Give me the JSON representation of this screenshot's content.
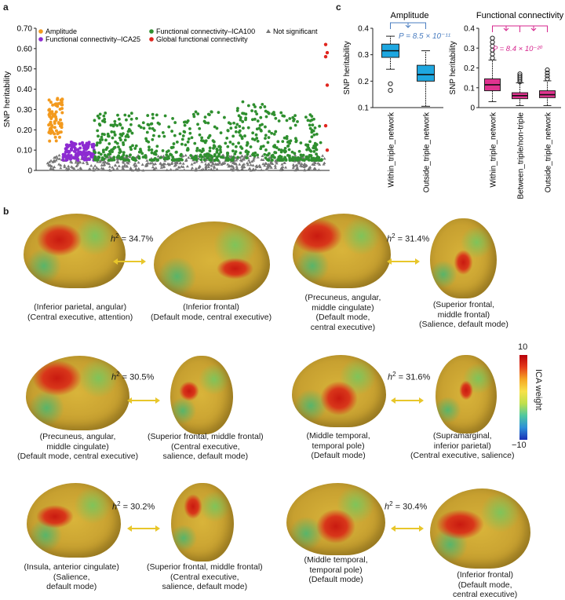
{
  "panels": {
    "a": "a",
    "b": "b",
    "c": "c"
  },
  "chart_data": [
    {
      "type": "scatter",
      "ylabel": "SNP heritability",
      "xlabel": "",
      "ylim": [
        0,
        0.7
      ],
      "yticks": [
        "0",
        "0.10",
        "0.20",
        "0.30",
        "0.40",
        "0.50",
        "0.60",
        "0.70"
      ],
      "grid": false,
      "legend": [
        {
          "label": "Amplitude",
          "color": "#f39a1e",
          "marker": "circle"
        },
        {
          "label": "Functional connectivity–ICA25",
          "color": "#8d2bd1",
          "marker": "circle"
        },
        {
          "label": "Functional connectivity–ICA100",
          "color": "#2f8f2f",
          "marker": "circle"
        },
        {
          "label": "Global functional connectivity",
          "color": "#e0261f",
          "marker": "circle"
        },
        {
          "label": "Not significant",
          "color": "#777777",
          "marker": "triangle"
        }
      ],
      "series_summary": [
        {
          "name": "Amplitude",
          "count": 76,
          "range": [
            0.13,
            0.37
          ]
        },
        {
          "name": "Functional connectivity–ICA25",
          "count": 140,
          "range": [
            0.05,
            0.14
          ]
        },
        {
          "name": "Functional connectivity–ICA100",
          "count": 1000,
          "range": [
            0.05,
            0.34
          ]
        },
        {
          "name": "Global functional connectivity",
          "values": [
            0.62,
            0.58,
            0.56,
            0.42,
            0.22,
            0.1
          ]
        },
        {
          "name": "Not significant",
          "count": 600,
          "range": [
            0.0,
            0.08
          ]
        }
      ]
    },
    {
      "type": "box",
      "title": "Amplitude",
      "ylabel": "SNP heritability",
      "ylim": [
        0.1,
        0.4
      ],
      "yticks": [
        "0.1",
        "0.2",
        "0.3",
        "0.4"
      ],
      "categories": [
        "Within_triple_network",
        "Outside_triple_network"
      ],
      "boxes": [
        {
          "q1": 0.29,
          "median": 0.315,
          "q3": 0.34,
          "whisker_low": 0.245,
          "whisker_high": 0.37,
          "outliers": [
            0.19,
            0.165
          ]
        },
        {
          "q1": 0.2,
          "median": 0.225,
          "q3": 0.26,
          "whisker_low": 0.105,
          "whisker_high": 0.315,
          "outliers": []
        }
      ],
      "annotation": "P = 8.5 × 10⁻¹¹",
      "annotation_color": "#4a7dc0",
      "box_color": "#1ea7e0"
    },
    {
      "type": "box",
      "title": "Functional connectivity",
      "ylabel": "SNP heritability",
      "ylim": [
        0,
        0.4
      ],
      "yticks": [
        "0",
        "0.1",
        "0.2",
        "0.3",
        "0.4"
      ],
      "categories": [
        "Within_triple_network",
        "Between_triple/non-triple",
        "Outside_triple_network"
      ],
      "boxes": [
        {
          "q1": 0.085,
          "median": 0.115,
          "q3": 0.145,
          "whisker_low": 0.03,
          "whisker_high": 0.24,
          "outliers": [
            0.25,
            0.27,
            0.29,
            0.31,
            0.33,
            0.35
          ]
        },
        {
          "q1": 0.045,
          "median": 0.06,
          "q3": 0.075,
          "whisker_low": 0.01,
          "whisker_high": 0.125,
          "outliers": [
            0.13,
            0.14,
            0.15,
            0.16,
            0.17
          ]
        },
        {
          "q1": 0.05,
          "median": 0.065,
          "q3": 0.085,
          "whisker_low": 0.01,
          "whisker_high": 0.135,
          "outliers": [
            0.145,
            0.16,
            0.175,
            0.19
          ]
        }
      ],
      "annotation": "P = 8.4 × 10⁻²⁰",
      "annotation_color": "#d6268e",
      "box_color": "#e0338f"
    }
  ],
  "colorbar": {
    "max": "10",
    "min": "−10",
    "label": "ICA weight"
  },
  "pairs": [
    {
      "h2": "= 34.7%",
      "left": [
        "(Inferior parietal, angular)",
        "(Central executive, attention)"
      ],
      "right": [
        "(Inferior frontal)",
        "(Default mode, central executive)"
      ]
    },
    {
      "h2": "= 31.4%",
      "left": [
        "(Precuneus, angular,",
        "middle cingulate)",
        "(Default mode,",
        "central executive)"
      ],
      "right": [
        "(Superior frontal,",
        "middle frontal)",
        "(Salience, default mode)"
      ]
    },
    {
      "h2": "= 30.5%",
      "left": [
        "(Precuneus, angular,",
        "middle cingulate)",
        "(Default mode, central executive)"
      ],
      "right": [
        "(Superior frontal, middle frontal)",
        "(Central executive,",
        "salience, default mode)"
      ]
    },
    {
      "h2": "= 31.6%",
      "left": [
        "(Middle temporal,",
        "temporal pole)",
        "(Default mode)"
      ],
      "right": [
        "(Supramarginal,",
        "inferior parietal)",
        "(Central executive, salience)"
      ]
    },
    {
      "h2": "= 30.2%",
      "left": [
        "(Insula, anterior cingulate)",
        "(Salience,",
        "default mode)"
      ],
      "right": [
        "(Superior frontal, middle frontal)",
        "(Central executive,",
        "salience, default mode)"
      ]
    },
    {
      "h2": "= 30.4%",
      "left": [
        "(Middle temporal,",
        "temporal pole)",
        "(Default mode)"
      ],
      "right": [
        "(Inferior frontal)",
        "(Default mode,",
        "central executive)"
      ]
    }
  ],
  "h2_symbol": "h",
  "h2_sup": "2"
}
